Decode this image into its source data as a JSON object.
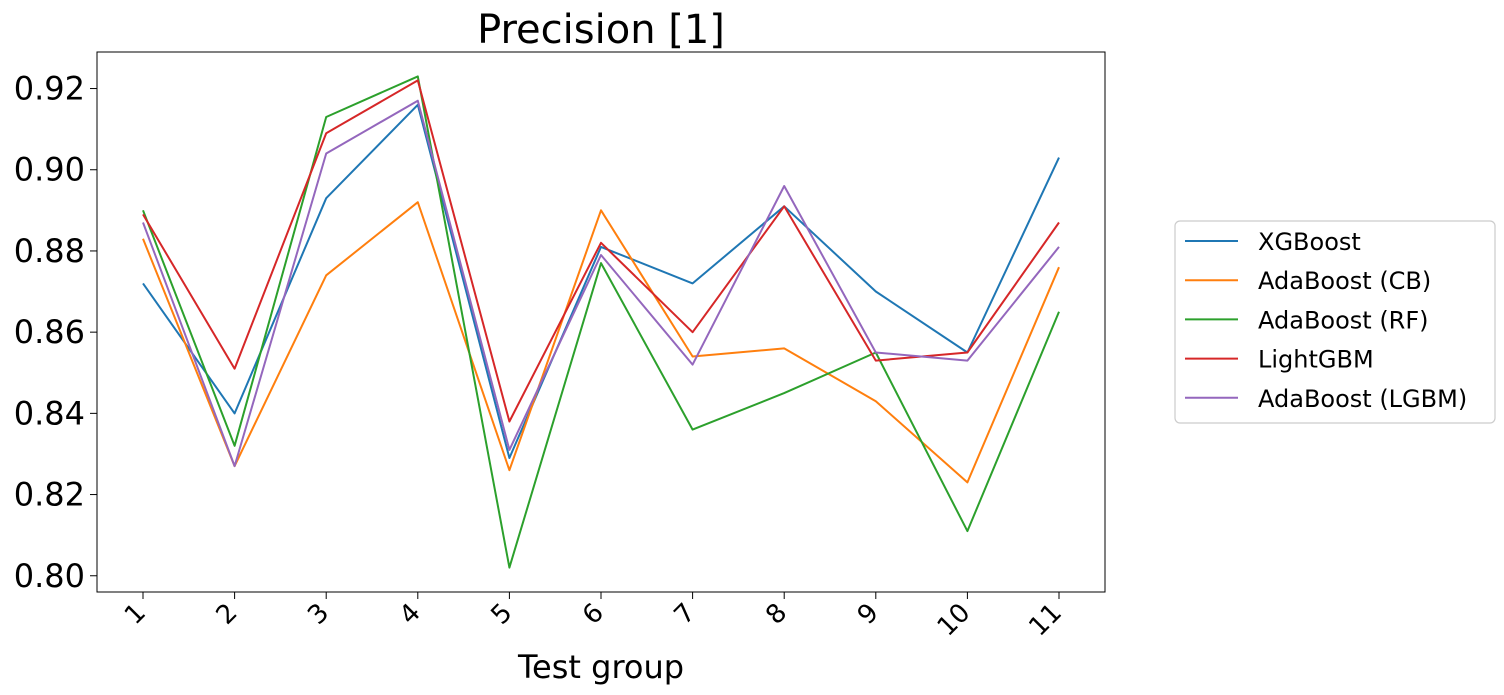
{
  "chart_data": {
    "type": "line",
    "title": "Precision [1]",
    "xlabel": "Test group",
    "ylabel": "",
    "x": [
      "1",
      "2",
      "3",
      "4",
      "5",
      "6",
      "7",
      "8",
      "9",
      "10",
      "11"
    ],
    "ylim": [
      0.796,
      0.929
    ],
    "yticks": [
      "0.80",
      "0.82",
      "0.84",
      "0.86",
      "0.88",
      "0.90",
      "0.92"
    ],
    "grid": false,
    "legend_position": "right",
    "series": [
      {
        "name": "XGBoost",
        "color": "#1f77b4",
        "values": [
          0.872,
          0.84,
          0.893,
          0.916,
          0.829,
          0.881,
          0.872,
          0.891,
          0.87,
          0.855,
          0.903
        ]
      },
      {
        "name": "AdaBoost (CB)",
        "color": "#ff7f0e",
        "values": [
          0.883,
          0.827,
          0.874,
          0.892,
          0.826,
          0.89,
          0.854,
          0.856,
          0.843,
          0.823,
          0.876
        ]
      },
      {
        "name": "AdaBoost (RF)",
        "color": "#2ca02c",
        "values": [
          0.89,
          0.832,
          0.913,
          0.923,
          0.802,
          0.877,
          0.836,
          0.845,
          0.855,
          0.811,
          0.865
        ]
      },
      {
        "name": "LightGBM",
        "color": "#d62728",
        "values": [
          0.889,
          0.851,
          0.909,
          0.922,
          0.838,
          0.882,
          0.86,
          0.891,
          0.853,
          0.855,
          0.887
        ]
      },
      {
        "name": "AdaBoost (LGBM)",
        "color": "#9467bd",
        "values": [
          0.887,
          0.827,
          0.904,
          0.917,
          0.831,
          0.879,
          0.852,
          0.896,
          0.855,
          0.853,
          0.881
        ]
      }
    ]
  }
}
